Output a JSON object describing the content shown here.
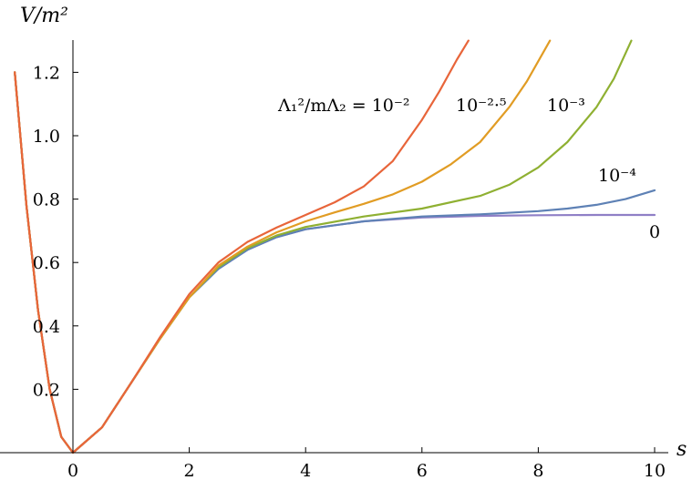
{
  "chart_data": {
    "type": "line",
    "title": "",
    "xlabel": "s",
    "ylabel": "V/m²",
    "xlim": [
      -1.1,
      10
    ],
    "ylim": [
      0,
      1.3
    ],
    "grid": false,
    "legend": "none",
    "x_ticks": [
      {
        "value": 0,
        "label": "0"
      },
      {
        "value": 2,
        "label": "2"
      },
      {
        "value": 4,
        "label": "4"
      },
      {
        "value": 6,
        "label": "6"
      },
      {
        "value": 8,
        "label": "8"
      },
      {
        "value": 10,
        "label": "10"
      }
    ],
    "y_ticks": [
      {
        "value": 0.2,
        "label": "0.2"
      },
      {
        "value": 0.4,
        "label": "0.4"
      },
      {
        "value": 0.6,
        "label": "0.6"
      },
      {
        "value": 0.8,
        "label": "0.8"
      },
      {
        "value": 1.0,
        "label": "1.0"
      },
      {
        "value": 1.2,
        "label": "1.2"
      }
    ],
    "series": [
      {
        "color": "#8f7fc6",
        "x": [
          -1,
          -0.8,
          -0.6,
          -0.4,
          -0.2,
          0,
          0.5,
          1,
          1.5,
          2,
          2.5,
          3,
          3.5,
          4,
          5,
          6,
          7,
          8,
          9,
          10
        ],
        "y": [
          1.2,
          0.78,
          0.45,
          0.2,
          0.05,
          0,
          0.08,
          0.22,
          0.36,
          0.49,
          0.58,
          0.64,
          0.68,
          0.705,
          0.73,
          0.742,
          0.747,
          0.749,
          0.75,
          0.75
        ]
      },
      {
        "color": "#5e81b5",
        "x": [
          -1,
          -0.8,
          -0.6,
          -0.4,
          -0.2,
          0,
          0.5,
          1,
          1.5,
          2,
          2.5,
          3,
          3.5,
          4,
          5,
          6,
          7,
          8,
          8.5,
          9,
          9.5,
          10
        ],
        "y": [
          1.2,
          0.78,
          0.45,
          0.2,
          0.05,
          0,
          0.08,
          0.22,
          0.36,
          0.49,
          0.58,
          0.64,
          0.68,
          0.705,
          0.73,
          0.745,
          0.752,
          0.762,
          0.77,
          0.782,
          0.8,
          0.828
        ]
      },
      {
        "color": "#8fb032",
        "x": [
          -1,
          -0.8,
          -0.6,
          -0.4,
          -0.2,
          0,
          0.5,
          1,
          1.5,
          2,
          2.5,
          3,
          3.5,
          4,
          5,
          6,
          7,
          7.5,
          8,
          8.5,
          9,
          9.3,
          9.6
        ],
        "y": [
          1.2,
          0.78,
          0.45,
          0.2,
          0.05,
          0,
          0.08,
          0.22,
          0.36,
          0.49,
          0.585,
          0.645,
          0.685,
          0.712,
          0.745,
          0.77,
          0.81,
          0.845,
          0.9,
          0.98,
          1.09,
          1.18,
          1.3
        ]
      },
      {
        "color": "#e19c24",
        "x": [
          -1,
          -0.8,
          -0.6,
          -0.4,
          -0.2,
          0,
          0.5,
          1,
          1.5,
          2,
          2.5,
          3,
          3.5,
          4,
          4.5,
          5,
          5.5,
          6,
          6.5,
          7,
          7.5,
          7.8,
          8.2
        ],
        "y": [
          1.2,
          0.78,
          0.45,
          0.2,
          0.05,
          0,
          0.08,
          0.22,
          0.36,
          0.49,
          0.59,
          0.65,
          0.695,
          0.73,
          0.758,
          0.785,
          0.815,
          0.855,
          0.91,
          0.98,
          1.09,
          1.17,
          1.3
        ]
      },
      {
        "color": "#e8653a",
        "x": [
          -1,
          -0.8,
          -0.6,
          -0.4,
          -0.2,
          0,
          0.5,
          1,
          1.5,
          2,
          2.5,
          3,
          3.5,
          4,
          4.5,
          5,
          5.5,
          6,
          6.3,
          6.6,
          6.8
        ],
        "y": [
          1.2,
          0.78,
          0.45,
          0.2,
          0.05,
          0,
          0.08,
          0.22,
          0.365,
          0.5,
          0.6,
          0.665,
          0.71,
          0.75,
          0.79,
          0.84,
          0.92,
          1.05,
          1.14,
          1.24,
          1.3
        ]
      }
    ],
    "annotations": {
      "ratio_label": "Λ₁²/mΛ₂ = 10⁻²",
      "label_2_5": "10⁻²·⁵",
      "label_3": "10⁻³",
      "label_4": "10⁻⁴",
      "label_0": "0"
    }
  }
}
